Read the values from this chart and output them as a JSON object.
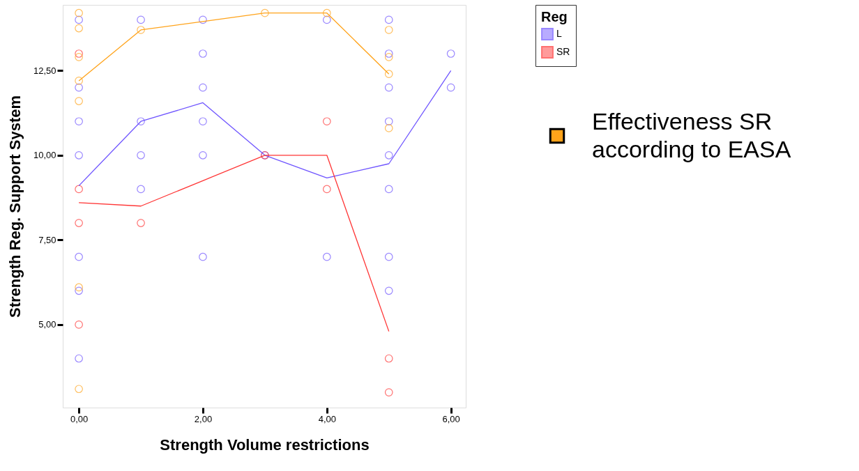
{
  "chart_data": {
    "type": "scatter",
    "xlabel": "Strength Volume restrictions",
    "ylabel": "Strength Reg. Support System",
    "legend_title": "Reg",
    "legend": "right",
    "grid": false,
    "marker": "circle",
    "xlim": [
      -0.26,
      6.24
    ],
    "ylim": [
      2.55,
      14.44
    ],
    "xticks": [
      {
        "value": 0,
        "label": "0,00"
      },
      {
        "value": 2,
        "label": "2,00"
      },
      {
        "value": 4,
        "label": "4,00"
      },
      {
        "value": 6,
        "label": "6,00"
      }
    ],
    "yticks": [
      {
        "value": 5,
        "label": "5,00"
      },
      {
        "value": 7.5,
        "label": "7,50"
      },
      {
        "value": 10,
        "label": "10,00"
      },
      {
        "value": 12.5,
        "label": "12,50"
      }
    ],
    "series": [
      {
        "name": "L",
        "color": "#6f55ff",
        "x": [
          0,
          0,
          0,
          0,
          0,
          0,
          0,
          1,
          1,
          1,
          1,
          2,
          2,
          2,
          2,
          2,
          2,
          3,
          4,
          4,
          5,
          5,
          5,
          5,
          5,
          5,
          5,
          5,
          6,
          6
        ],
        "values": [
          14,
          12,
          11,
          10,
          7,
          6,
          4,
          14,
          11,
          10,
          9,
          14,
          13,
          12,
          11,
          10,
          7,
          10,
          14,
          7,
          14,
          13,
          12,
          11,
          10,
          9,
          7,
          6,
          13,
          12
        ]
      },
      {
        "name": "SR",
        "color": "#ff3535",
        "x": [
          0,
          0,
          0,
          0,
          1,
          3,
          4,
          4,
          5,
          5
        ],
        "values": [
          13,
          9,
          8,
          5,
          8,
          10,
          11,
          9,
          4,
          3
        ]
      },
      {
        "name": "Effectiveness SR according to EASA",
        "color": "#ffa31a",
        "x": [
          0,
          0,
          0,
          0,
          0,
          0,
          0,
          1,
          3,
          4,
          5,
          5,
          5,
          5
        ],
        "values": [
          14.2,
          13.75,
          12.9,
          12.2,
          11.6,
          6.1,
          3.1,
          13.7,
          14.2,
          14.2,
          13.7,
          12.9,
          12.4,
          10.8
        ]
      },
      {
        "type": "line",
        "marker": "none",
        "color": "#6f55ff",
        "x": [
          0,
          1,
          2,
          3,
          4,
          5,
          6
        ],
        "values": [
          9.1,
          11,
          11.55,
          10,
          9.33,
          9.75,
          12.5
        ]
      },
      {
        "type": "line",
        "marker": "none",
        "color": "#ff3535",
        "x": [
          0,
          1,
          2,
          3,
          4,
          5
        ],
        "values": [
          8.6,
          8.5,
          9.25,
          10,
          10,
          4.8
        ]
      },
      {
        "type": "line",
        "marker": "none",
        "color": "#ffa31a",
        "x": [
          0,
          1,
          2,
          3,
          4,
          5
        ],
        "values": [
          12.2,
          13.7,
          13.95,
          14.2,
          14.2,
          12.4
        ]
      }
    ]
  }
}
